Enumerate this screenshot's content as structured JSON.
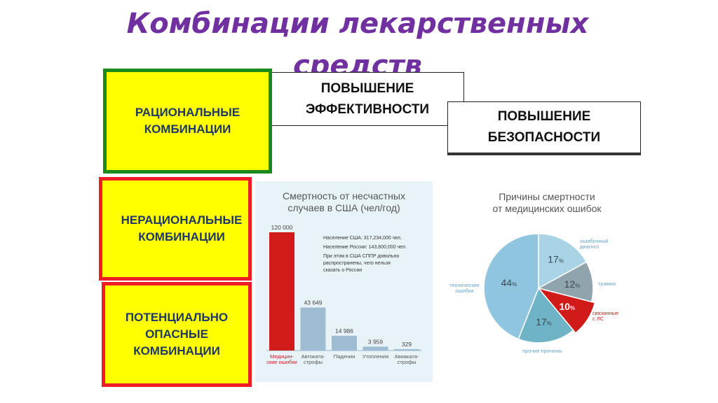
{
  "title": "Комбинации лекарственных\nсредств",
  "boxes": {
    "rational": "РАЦИОНАЛЬНЫЕ\nКОМБИНАЦИИ",
    "irrational": "НЕРАЦИОНАЛЬНЫЕ\nКОМБИНАЦИИ",
    "dangerous": "ПОТЕНЦИАЛЬНО\nОПАСНЫЕ\nКОМБИНАЦИИ",
    "efficacy": "ПОВЫШЕНИЕ\nЭФФЕКТИВНОСТИ",
    "safety": "ПОВЫШЕНИЕ\nБЕЗОПАСНОСТИ"
  },
  "colors": {
    "title": "#7030a0",
    "box_fill": "#ffff00",
    "rational_border": "#1a8a1a",
    "irrational_border": "#ee1c24",
    "bar_highlight": "#d21c1c",
    "bar_default": "#9fbdd2"
  },
  "chart_data": [
    {
      "type": "bar",
      "title": "Смертность от несчастных\nслучаев в США (чел/год)",
      "categories": [
        "Медицин-\nские ошибки",
        "Автоката-\nстрофы",
        "Падения",
        "Утопления",
        "Авиаката-\nстрофы"
      ],
      "values": [
        120000,
        43649,
        14986,
        3959,
        329
      ],
      "value_labels": [
        "120 000",
        "43 649",
        "14 986",
        "3 959",
        "329"
      ],
      "ylim": [
        0,
        120000
      ],
      "annotations": [
        "Население США: 317,234,000 чел.",
        "Население России: 143,600,000 чел.",
        "При этом в США СППР довольно\nраспространены, чего нельзя\nсказать о России"
      ]
    },
    {
      "type": "pie",
      "title": "Причины смертности\nот медицинских ошибок",
      "slices": [
        {
          "label": "ошибочный\nдиагноз",
          "value": 17,
          "value_text": "17",
          "color": "#a9d4e6"
        },
        {
          "label": "травма",
          "value": 12,
          "value_text": "12",
          "color": "#8fa4ad"
        },
        {
          "label": "связанные\nс ЛС",
          "value": 10,
          "value_text": "10",
          "color": "#d11a1a"
        },
        {
          "label": "прочие причины",
          "value": 17,
          "value_text": "17",
          "color": "#6fb3c6"
        },
        {
          "label": "технические\nошибки",
          "value": 44,
          "value_text": "44",
          "color": "#8fc5df"
        }
      ],
      "unit": "%"
    }
  ]
}
